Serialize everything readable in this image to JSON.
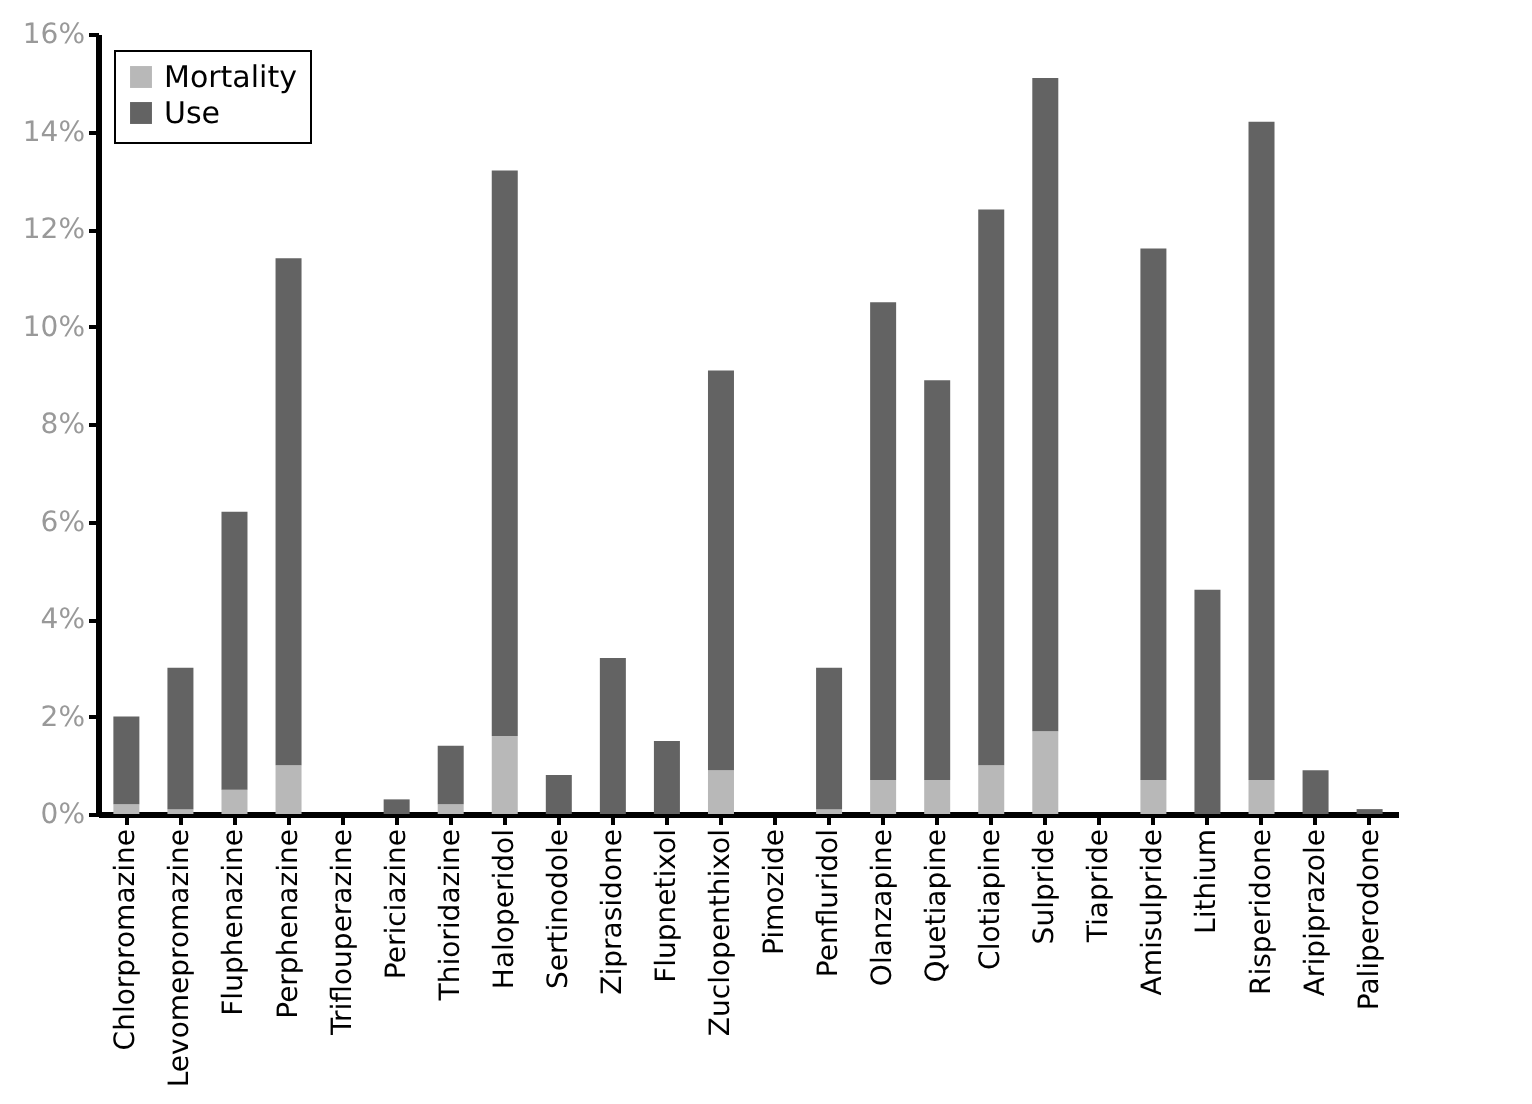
{
  "chart_data": {
    "type": "bar",
    "stacked": true,
    "legend": "top left",
    "grid": false,
    "categories": [
      "Chlorpromazine",
      "Levomepromazine",
      "Fluphenazine",
      "Perphenazine",
      "Triflouperazine",
      "Periciazine",
      "Thioridazine",
      "Haloperidol",
      "Sertinodole",
      "Ziprasidone",
      "Flupnetixol",
      "Zuclopenthixol",
      "Pimozide",
      "Penfluridol",
      "Olanzapine",
      "Quetiapine",
      "Clotiapine",
      "Sulpride",
      "Tiapride",
      "Amisulpride",
      "Lithium",
      "Risperidone",
      "Aripiprazole",
      "Paliperodone"
    ],
    "series": [
      {
        "name": "Mortality",
        "color": "#b8b8b8",
        "values": [
          0.2,
          0.1,
          0.5,
          1.0,
          0,
          0,
          0.2,
          1.6,
          0,
          0,
          0,
          0.9,
          0,
          0.1,
          0.7,
          0.7,
          1.0,
          1.7,
          0,
          0.7,
          0,
          0.7,
          0,
          0
        ]
      },
      {
        "name": "Use",
        "color": "#636363",
        "values": [
          1.8,
          2.9,
          5.7,
          10.4,
          0,
          0.3,
          1.2,
          11.6,
          0.8,
          3.2,
          1.5,
          8.2,
          0,
          2.9,
          9.8,
          8.2,
          11.4,
          13.4,
          0,
          10.9,
          4.6,
          13.5,
          0.9,
          0.1
        ]
      }
    ],
    "ylim": [
      0,
      16
    ],
    "yticks": [
      {
        "value": 0,
        "label": "0%"
      },
      {
        "value": 2,
        "label": "2%"
      },
      {
        "value": 4,
        "label": "4%"
      },
      {
        "value": 6,
        "label": "6%"
      },
      {
        "value": 8,
        "label": "8%"
      },
      {
        "value": 10,
        "label": "10%"
      },
      {
        "value": 12,
        "label": "12%"
      },
      {
        "value": 14,
        "label": "14%"
      },
      {
        "value": 16,
        "label": "16%"
      }
    ]
  }
}
